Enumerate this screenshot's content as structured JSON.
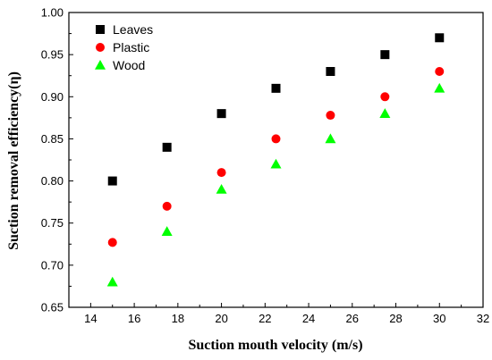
{
  "chart_data": {
    "type": "scatter",
    "title": "",
    "xlabel": "Suction mouth velocity (m/s)",
    "ylabel": "Suction removal efficiency(η)",
    "xlim": [
      13,
      32
    ],
    "ylim": [
      0.65,
      1.0
    ],
    "xticks": [
      14,
      16,
      18,
      20,
      22,
      24,
      26,
      28,
      30,
      32
    ],
    "yticks": [
      0.65,
      0.7,
      0.75,
      0.8,
      0.85,
      0.9,
      0.95,
      1.0
    ],
    "xtick_labels": [
      "14",
      "16",
      "18",
      "20",
      "22",
      "24",
      "26",
      "28",
      "30",
      "32"
    ],
    "ytick_labels": [
      "0.65",
      "0.70",
      "0.75",
      "0.80",
      "0.85",
      "0.90",
      "0.95",
      "1.00"
    ],
    "grid": false,
    "legend_position": "top-left",
    "series": [
      {
        "name": "Leaves",
        "marker": "square",
        "color": "#000000",
        "x": [
          15,
          17.5,
          20,
          22.5,
          25,
          27.5,
          30
        ],
        "y": [
          0.8,
          0.84,
          0.88,
          0.91,
          0.93,
          0.95,
          0.97
        ]
      },
      {
        "name": "Plastic",
        "marker": "circle",
        "color": "#ff0000",
        "x": [
          15,
          17.5,
          20,
          22.5,
          25,
          27.5,
          30
        ],
        "y": [
          0.727,
          0.77,
          0.81,
          0.85,
          0.878,
          0.9,
          0.93
        ]
      },
      {
        "name": "Wood",
        "marker": "triangle",
        "color": "#00ff00",
        "x": [
          15,
          17.5,
          20,
          22.5,
          25,
          27.5,
          30
        ],
        "y": [
          0.68,
          0.74,
          0.79,
          0.82,
          0.85,
          0.88,
          0.91
        ]
      }
    ]
  }
}
